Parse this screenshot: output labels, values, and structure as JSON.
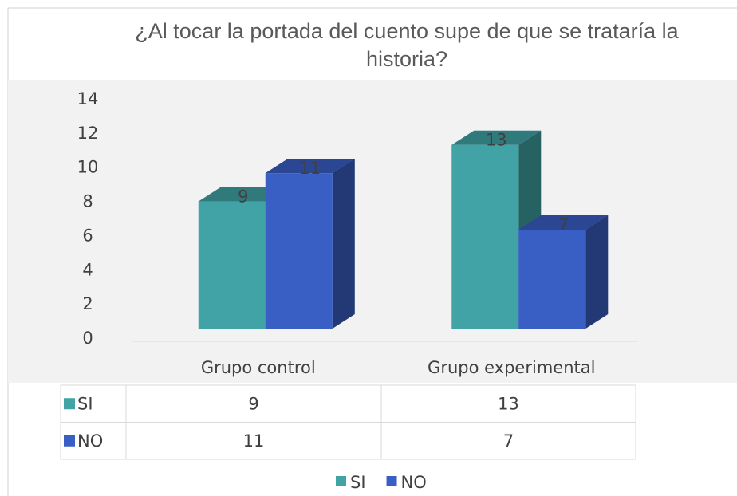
{
  "chart_data": {
    "type": "bar3d",
    "title": "¿Al tocar la portada del cuento supe de que se trataría la historia?",
    "categories": [
      "Grupo control",
      "Grupo experimental"
    ],
    "series": [
      {
        "name": "SI",
        "color": "#41a3a6",
        "values": [
          9,
          13
        ]
      },
      {
        "name": "NO",
        "color": "#3a5fc4",
        "values": [
          11,
          7
        ]
      }
    ],
    "ylim": [
      0,
      14
    ],
    "yticks": [
      0,
      2,
      4,
      6,
      8,
      10,
      12,
      14
    ],
    "data_table": true,
    "legend": "bottom"
  }
}
